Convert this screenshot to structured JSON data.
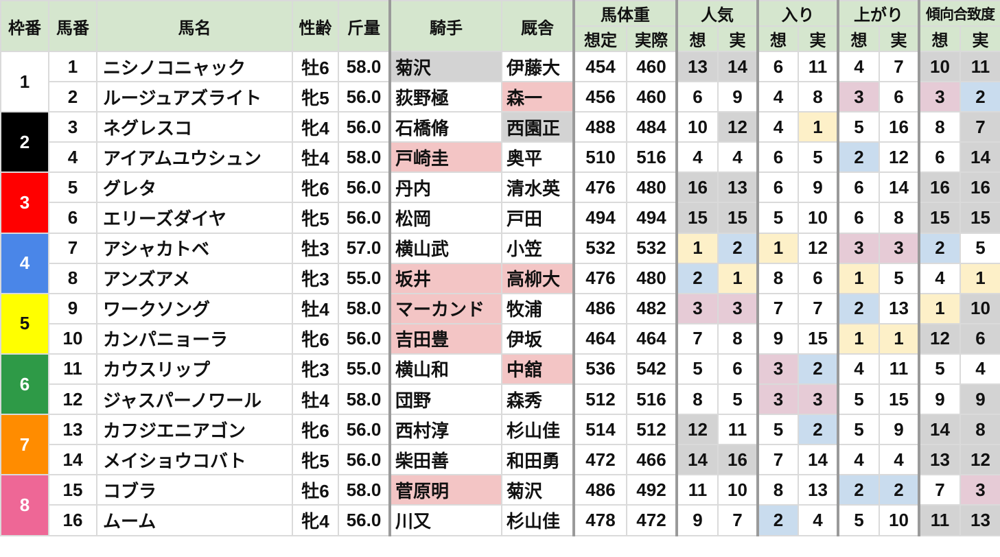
{
  "headers": {
    "waku": "枠番",
    "umaban": "馬番",
    "name": "馬名",
    "sexage": "性齢",
    "weight": "斤量",
    "jockey": "騎手",
    "stable": "厩舎",
    "body_weight": "馬体重",
    "bw_pred": "想定",
    "bw_actual": "実際",
    "popularity": "人気",
    "entry": "入り",
    "agari": "上がり",
    "tendency": "傾向合致度",
    "pred": "想",
    "actual": "実"
  },
  "colors": {
    "header_bg": "#d5e6ce",
    "gray": "#d3d3d3",
    "pink": "#f3c5c5",
    "blue": "#c9dcee",
    "yellow": "#fdf0c8",
    "lavender": "#e6cbd6"
  },
  "frames": [
    {
      "label": "1",
      "bg": "#ffffff",
      "fg": "#111111"
    },
    {
      "label": "2",
      "bg": "#000000",
      "fg": "#ffffff"
    },
    {
      "label": "3",
      "bg": "#ff0000",
      "fg": "#ffffff"
    },
    {
      "label": "4",
      "bg": "#4a86e8",
      "fg": "#ffffff"
    },
    {
      "label": "5",
      "bg": "#ffff00",
      "fg": "#111111"
    },
    {
      "label": "6",
      "bg": "#2e9a47",
      "fg": "#ffffff"
    },
    {
      "label": "7",
      "bg": "#ff8c00",
      "fg": "#ffffff"
    },
    {
      "label": "8",
      "bg": "#ee6796",
      "fg": "#ffffff"
    }
  ],
  "rows": [
    {
      "no": "1",
      "name": "ニシノコニャック",
      "sexage": "牡6",
      "weight": "58.0",
      "jockey": "菊沢",
      "stable": "伊藤大",
      "bw_pred": "454",
      "bw_actual": "460",
      "pop_p": "13",
      "pop_a": "14",
      "entry_p": "6",
      "entry_a": "11",
      "agari_p": "4",
      "agari_a": "7",
      "tend_p": "10",
      "tend_a": "11",
      "marks": {
        "jockey": "gray",
        "pop_p": "gray",
        "pop_a": "gray",
        "tend_p": "gray",
        "tend_a": "gray"
      }
    },
    {
      "no": "2",
      "name": "ルージュアズライト",
      "sexage": "牝5",
      "weight": "56.0",
      "jockey": "荻野極",
      "stable": "森一",
      "bw_pred": "456",
      "bw_actual": "460",
      "pop_p": "6",
      "pop_a": "9",
      "entry_p": "4",
      "entry_a": "8",
      "agari_p": "3",
      "agari_a": "6",
      "tend_p": "3",
      "tend_a": "2",
      "marks": {
        "stable": "pink",
        "agari_p": "lavender",
        "tend_p": "lavender",
        "tend_a": "blue"
      }
    },
    {
      "no": "3",
      "name": "ネグレスコ",
      "sexage": "牝4",
      "weight": "56.0",
      "jockey": "石橋脩",
      "stable": "西園正",
      "bw_pred": "488",
      "bw_actual": "484",
      "pop_p": "10",
      "pop_a": "12",
      "entry_p": "4",
      "entry_a": "1",
      "agari_p": "5",
      "agari_a": "16",
      "tend_p": "8",
      "tend_a": "7",
      "marks": {
        "stable": "gray",
        "pop_a": "gray",
        "entry_a": "yellow",
        "tend_a": "gray"
      }
    },
    {
      "no": "4",
      "name": "アイアムユウシュン",
      "sexage": "牡4",
      "weight": "58.0",
      "jockey": "戸崎圭",
      "stable": "奥平",
      "bw_pred": "510",
      "bw_actual": "516",
      "pop_p": "4",
      "pop_a": "4",
      "entry_p": "6",
      "entry_a": "5",
      "agari_p": "2",
      "agari_a": "12",
      "tend_p": "6",
      "tend_a": "14",
      "marks": {
        "jockey": "pink",
        "agari_p": "blue",
        "tend_a": "gray"
      }
    },
    {
      "no": "5",
      "name": "グレタ",
      "sexage": "牝6",
      "weight": "56.0",
      "jockey": "丹内",
      "stable": "清水英",
      "bw_pred": "476",
      "bw_actual": "480",
      "pop_p": "16",
      "pop_a": "13",
      "entry_p": "6",
      "entry_a": "9",
      "agari_p": "6",
      "agari_a": "14",
      "tend_p": "16",
      "tend_a": "16",
      "marks": {
        "pop_p": "gray",
        "pop_a": "gray",
        "tend_p": "gray",
        "tend_a": "gray"
      }
    },
    {
      "no": "6",
      "name": "エリーズダイヤ",
      "sexage": "牝5",
      "weight": "56.0",
      "jockey": "松岡",
      "stable": "戸田",
      "bw_pred": "494",
      "bw_actual": "494",
      "pop_p": "15",
      "pop_a": "15",
      "entry_p": "5",
      "entry_a": "10",
      "agari_p": "6",
      "agari_a": "8",
      "tend_p": "15",
      "tend_a": "15",
      "marks": {
        "pop_p": "gray",
        "pop_a": "gray",
        "tend_p": "gray",
        "tend_a": "gray"
      }
    },
    {
      "no": "7",
      "name": "アシャカトベ",
      "sexage": "牡3",
      "weight": "57.0",
      "jockey": "横山武",
      "stable": "小笠",
      "bw_pred": "532",
      "bw_actual": "532",
      "pop_p": "1",
      "pop_a": "2",
      "entry_p": "1",
      "entry_a": "12",
      "agari_p": "3",
      "agari_a": "3",
      "tend_p": "2",
      "tend_a": "5",
      "marks": {
        "pop_p": "yellow",
        "pop_a": "blue",
        "entry_p": "yellow",
        "agari_p": "lavender",
        "agari_a": "lavender",
        "tend_p": "blue"
      }
    },
    {
      "no": "8",
      "name": "アンズアメ",
      "sexage": "牝3",
      "weight": "55.0",
      "jockey": "坂井",
      "stable": "高柳大",
      "bw_pred": "476",
      "bw_actual": "480",
      "pop_p": "2",
      "pop_a": "1",
      "entry_p": "8",
      "entry_a": "6",
      "agari_p": "1",
      "agari_a": "5",
      "tend_p": "4",
      "tend_a": "1",
      "marks": {
        "jockey": "pink",
        "stable": "pink",
        "pop_p": "blue",
        "pop_a": "yellow",
        "agari_p": "yellow",
        "tend_a": "yellow"
      }
    },
    {
      "no": "9",
      "name": "ワークソング",
      "sexage": "牡4",
      "weight": "58.0",
      "jockey": "マーカンド",
      "stable": "牧浦",
      "bw_pred": "486",
      "bw_actual": "482",
      "pop_p": "3",
      "pop_a": "3",
      "entry_p": "7",
      "entry_a": "7",
      "agari_p": "2",
      "agari_a": "13",
      "tend_p": "1",
      "tend_a": "10",
      "marks": {
        "jockey": "pink",
        "pop_p": "lavender",
        "pop_a": "lavender",
        "agari_p": "blue",
        "tend_p": "yellow",
        "tend_a": "gray"
      }
    },
    {
      "no": "10",
      "name": "カンパニョーラ",
      "sexage": "牝6",
      "weight": "56.0",
      "jockey": "吉田豊",
      "stable": "伊坂",
      "bw_pred": "464",
      "bw_actual": "464",
      "pop_p": "7",
      "pop_a": "8",
      "entry_p": "9",
      "entry_a": "15",
      "agari_p": "1",
      "agari_a": "1",
      "tend_p": "12",
      "tend_a": "6",
      "marks": {
        "jockey": "pink",
        "agari_p": "yellow",
        "agari_a": "yellow",
        "tend_p": "gray",
        "tend_a": "gray"
      }
    },
    {
      "no": "11",
      "name": "カウスリップ",
      "sexage": "牝3",
      "weight": "55.0",
      "jockey": "横山和",
      "stable": "中舘",
      "bw_pred": "536",
      "bw_actual": "542",
      "pop_p": "5",
      "pop_a": "6",
      "entry_p": "3",
      "entry_a": "2",
      "agari_p": "4",
      "agari_a": "11",
      "tend_p": "5",
      "tend_a": "4",
      "marks": {
        "stable": "pink",
        "entry_p": "lavender",
        "entry_a": "blue"
      }
    },
    {
      "no": "12",
      "name": "ジャスパーノワール",
      "sexage": "牡4",
      "weight": "58.0",
      "jockey": "団野",
      "stable": "森秀",
      "bw_pred": "512",
      "bw_actual": "516",
      "pop_p": "8",
      "pop_a": "5",
      "entry_p": "3",
      "entry_a": "3",
      "agari_p": "5",
      "agari_a": "15",
      "tend_p": "9",
      "tend_a": "9",
      "marks": {
        "entry_p": "lavender",
        "entry_a": "lavender",
        "tend_a": "gray"
      }
    },
    {
      "no": "13",
      "name": "カフジエニアゴン",
      "sexage": "牝6",
      "weight": "56.0",
      "jockey": "西村淳",
      "stable": "杉山佳",
      "bw_pred": "514",
      "bw_actual": "512",
      "pop_p": "12",
      "pop_a": "11",
      "entry_p": "5",
      "entry_a": "2",
      "agari_p": "5",
      "agari_a": "9",
      "tend_p": "14",
      "tend_a": "8",
      "marks": {
        "pop_p": "gray",
        "entry_a": "blue",
        "tend_p": "gray",
        "tend_a": "gray"
      }
    },
    {
      "no": "14",
      "name": "メイショウコバト",
      "sexage": "牝5",
      "weight": "56.0",
      "jockey": "柴田善",
      "stable": "和田勇",
      "bw_pred": "472",
      "bw_actual": "466",
      "pop_p": "14",
      "pop_a": "16",
      "entry_p": "7",
      "entry_a": "14",
      "agari_p": "4",
      "agari_a": "4",
      "tend_p": "13",
      "tend_a": "12",
      "marks": {
        "pop_p": "gray",
        "pop_a": "gray",
        "tend_p": "gray",
        "tend_a": "gray"
      }
    },
    {
      "no": "15",
      "name": "コブラ",
      "sexage": "牡6",
      "weight": "58.0",
      "jockey": "菅原明",
      "stable": "菊沢",
      "bw_pred": "486",
      "bw_actual": "492",
      "pop_p": "11",
      "pop_a": "10",
      "entry_p": "8",
      "entry_a": "13",
      "agari_p": "2",
      "agari_a": "2",
      "tend_p": "7",
      "tend_a": "3",
      "marks": {
        "jockey": "pink",
        "agari_p": "blue",
        "agari_a": "blue",
        "tend_a": "lavender"
      }
    },
    {
      "no": "16",
      "name": "ムーム",
      "sexage": "牝4",
      "weight": "56.0",
      "jockey": "川又",
      "stable": "杉山佳",
      "bw_pred": "478",
      "bw_actual": "472",
      "pop_p": "9",
      "pop_a": "7",
      "entry_p": "2",
      "entry_a": "4",
      "agari_p": "5",
      "agari_a": "10",
      "tend_p": "11",
      "tend_a": "13",
      "marks": {
        "entry_p": "blue",
        "tend_p": "gray",
        "tend_a": "gray"
      }
    }
  ]
}
